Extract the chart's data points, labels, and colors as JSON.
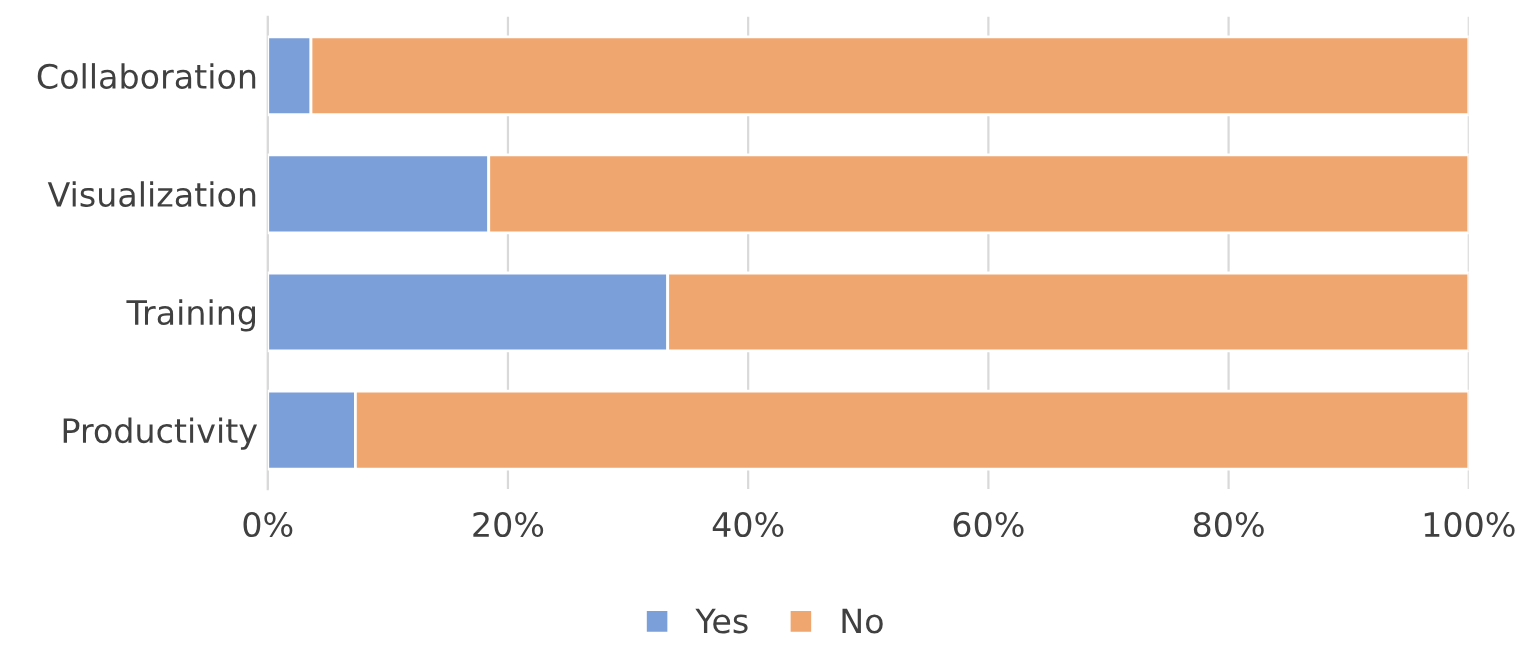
{
  "chart_data": {
    "type": "bar",
    "orientation": "horizontal",
    "stacked": true,
    "categories": [
      "Collaboration",
      "Visualization",
      "Training",
      "Productivity"
    ],
    "series": [
      {
        "name": "Yes",
        "color": "#7b9fd8",
        "values": [
          3.6,
          18.4,
          33.3,
          7.3
        ]
      },
      {
        "name": "No",
        "color": "#f0a66f",
        "values": [
          96.4,
          81.6,
          66.7,
          92.7
        ]
      }
    ],
    "xlim": [
      0,
      100
    ],
    "xticks": [
      {
        "value": 0,
        "label": "0%"
      },
      {
        "value": 20,
        "label": "20%"
      },
      {
        "value": 40,
        "label": "40%"
      },
      {
        "value": 60,
        "label": "60%"
      },
      {
        "value": 80,
        "label": "80%"
      },
      {
        "value": 100,
        "label": "100%"
      }
    ],
    "grid": "x",
    "legend": "bottom"
  }
}
